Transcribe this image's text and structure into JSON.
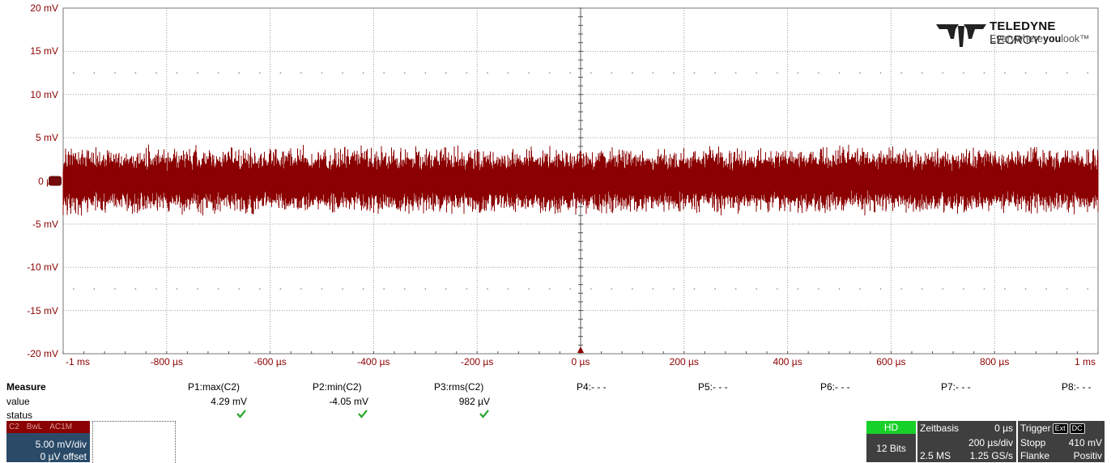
{
  "scope": {
    "y_labels": [
      "20 mV",
      "15 mV",
      "10 mV",
      "5 mV",
      "0 µV",
      "-5 mV",
      "-10 mV",
      "-15 mV",
      "-20 mV"
    ],
    "x_labels": [
      "-1 ms",
      "-800 µs",
      "-600 µs",
      "-400 µs",
      "-200 µs",
      "0 µs",
      "200 µs",
      "400 µs",
      "600 µs",
      "800 µs",
      "1 ms"
    ],
    "trace_color": "#8b0000",
    "grid_color": "#9a9a9a",
    "trace_band_mv": [
      -4.05,
      4.29
    ]
  },
  "logo": {
    "brand_bold": "TELEDYNE",
    "brand_thin": "LECROY",
    "tagline_pre": "Everywhere",
    "tagline_bold": "you",
    "tagline_post": "look"
  },
  "measure": {
    "title": "Measure",
    "row_value": "value",
    "row_status": "status",
    "params": [
      {
        "label": "P1:max(C2)",
        "value": "4.29 mV",
        "status": "ok"
      },
      {
        "label": "P2:min(C2)",
        "value": "-4.05 mV",
        "status": "ok"
      },
      {
        "label": "P3:rms(C2)",
        "value": "982 µV",
        "status": "ok"
      },
      {
        "label": "P4:- - -"
      },
      {
        "label": "P5:- - -"
      },
      {
        "label": "P6:- - -"
      },
      {
        "label": "P7:- - -"
      },
      {
        "label": "P8:- - -"
      }
    ]
  },
  "channel": {
    "name": "C2",
    "bwl": "BwL",
    "coupling": "AC1M",
    "vdiv": "5.00 mV/div",
    "offset": "0 µV offset"
  },
  "hd": {
    "label": "HD",
    "bits": "12 Bits"
  },
  "timebase": {
    "title": "Zeitbasis",
    "delay": "0 µs",
    "tdiv": "200 µs/div",
    "samples": "2.5 MS",
    "rate": "1.25 GS/s"
  },
  "trigger": {
    "title": "Trigger",
    "source_badge": "Ext",
    "coupling_badge": "DC",
    "mode": "Stopp",
    "level": "410 mV",
    "type": "Flanke",
    "slope": "Positiv"
  }
}
